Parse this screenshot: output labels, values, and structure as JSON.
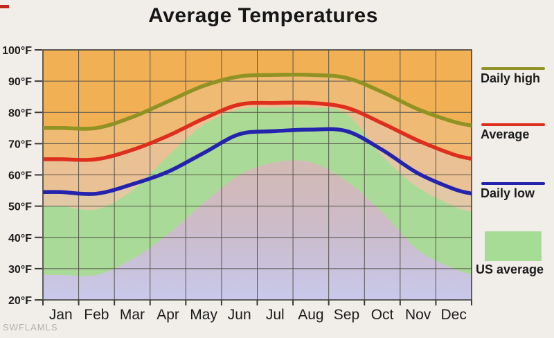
{
  "title": "Average Temperatures",
  "watermark": "SWFLAMLS",
  "legend": {
    "items": [
      {
        "label": "Daily high",
        "swatch": "line",
        "color": "#909324"
      },
      {
        "label": "Average",
        "swatch": "line",
        "color": "#de2e1d"
      },
      {
        "label": "Daily low",
        "swatch": "line",
        "color": "#2323ad"
      },
      {
        "label": "US average",
        "swatch": "area",
        "color": "#a6dc96"
      }
    ]
  },
  "colors": {
    "outer_background": "#f1eee9",
    "plot_background": "#f2b054",
    "fill_below_daily_high": "#efba74",
    "fill_below_average": "#eac194",
    "fill_below_daily_low": "#e3c8a6",
    "us_average_band": "#a6dc96",
    "lavender_bottom": "#c9c9ec",
    "mauve_blend": "#cbb4bc",
    "gridline": "#55544c",
    "frame": "#3f3e37",
    "axis_text": "#1b1b1b",
    "daily_high_line": "#909324",
    "average_line": "#de2e1d",
    "daily_low_line": "#2323ad"
  },
  "chart_data": {
    "type": "line",
    "title": "Average Temperatures",
    "categories": [
      "Jan",
      "Feb",
      "Mar",
      "Apr",
      "May",
      "Jun",
      "Jul",
      "Aug",
      "Sep",
      "Oct",
      "Nov",
      "Dec"
    ],
    "ylabel": "",
    "xlabel": "",
    "ylim": [
      20,
      100
    ],
    "y_ticks": [
      20,
      30,
      40,
      50,
      60,
      70,
      80,
      90,
      100
    ],
    "y_tick_labels": [
      "20°F",
      "30°F",
      "40°F",
      "50°F",
      "60°F",
      "70°F",
      "80°F",
      "90°F",
      "100°F"
    ],
    "grid": true,
    "legend_position": "right",
    "series": [
      {
        "name": "Daily high",
        "color": "#909324",
        "values": [
          75,
          75,
          78.5,
          83.5,
          88.5,
          91.5,
          92,
          92,
          91,
          86.5,
          81,
          77
        ]
      },
      {
        "name": "Average",
        "color": "#de2e1d",
        "values": [
          65,
          65,
          68,
          72.5,
          78,
          82.5,
          83,
          83,
          81.5,
          76.5,
          71,
          66.5
        ]
      },
      {
        "name": "Daily low",
        "color": "#2323ad",
        "values": [
          54.5,
          54,
          57,
          61,
          67,
          73,
          74,
          74.5,
          74,
          68,
          60.5,
          55.5
        ]
      }
    ],
    "band_series": {
      "name": "US average",
      "color": "#a6dc96",
      "high": [
        50,
        49,
        55,
        66,
        76,
        81,
        81.5,
        81.5,
        79.5,
        66,
        56,
        50
      ],
      "low": [
        28,
        28,
        33,
        41,
        51,
        60,
        64,
        64,
        58,
        48,
        36,
        30
      ]
    }
  }
}
